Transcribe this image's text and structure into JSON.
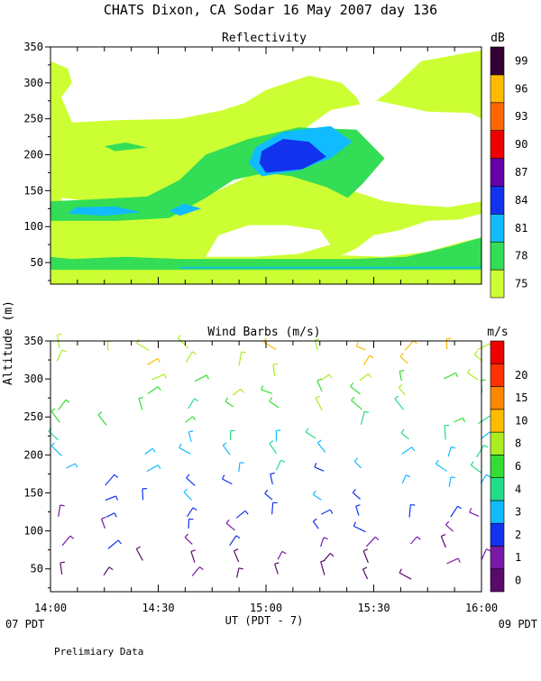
{
  "title": "CHATS Dixon, CA  Sodar  16 May 2007  day 136",
  "footnote": "Prelimiary Data",
  "y_axis_label": "Altitude (m)",
  "x_axis": {
    "label": "UT  (PDT - 7)",
    "ticks": [
      "14:00",
      "14:30",
      "15:00",
      "15:30",
      "16:00"
    ],
    "tick_values_hours": [
      14.0,
      14.5,
      15.0,
      15.5,
      16.0
    ],
    "range_hours": [
      14.0,
      16.0
    ],
    "start_local_label": "07 PDT",
    "end_local_label": "09 PDT"
  },
  "chart_data": [
    {
      "type": "heatmap",
      "title": "Reflectivity",
      "ylim": [
        20,
        350
      ],
      "y_ticks": [
        50,
        100,
        150,
        200,
        250,
        300,
        350
      ],
      "colorbar": {
        "unit": "dB",
        "levels": [
          {
            "label": "75",
            "color": "#ccff33"
          },
          {
            "label": "78",
            "color": "#33dd55"
          },
          {
            "label": "81",
            "color": "#11bbff"
          },
          {
            "label": "84",
            "color": "#1133ee"
          },
          {
            "label": "87",
            "color": "#6600aa"
          },
          {
            "label": "90",
            "color": "#ee0000"
          },
          {
            "label": "93",
            "color": "#ff6600"
          },
          {
            "label": "96",
            "color": "#ffbb00"
          },
          {
            "label": "99",
            "color": "#330033"
          }
        ]
      },
      "regions": [
        {
          "level": "75",
          "polygon": [
            [
              14.0,
              20
            ],
            [
              16.0,
              20
            ],
            [
              16.0,
              350
            ],
            [
              14.0,
              350
            ]
          ]
        },
        {
          "level": "background",
          "polygon": [
            [
              14.05,
              132
            ],
            [
              14.3,
              125
            ],
            [
              14.55,
              130
            ],
            [
              14.8,
              165
            ],
            [
              14.95,
              205
            ],
            [
              15.05,
              225
            ],
            [
              15.15,
              230
            ],
            [
              15.3,
              262
            ],
            [
              15.52,
              275
            ],
            [
              15.75,
              260
            ],
            [
              15.95,
              258
            ],
            [
              16.0,
              250
            ],
            [
              16.0,
              135
            ],
            [
              15.85,
              127
            ],
            [
              15.7,
              130
            ],
            [
              15.55,
              135
            ],
            [
              15.35,
              155
            ],
            [
              15.2,
              165
            ],
            [
              15.05,
              180
            ],
            [
              14.95,
              175
            ],
            [
              14.85,
              160
            ],
            [
              14.7,
              140
            ],
            [
              14.6,
              128
            ],
            [
              14.4,
              130
            ],
            [
              14.2,
              135
            ],
            [
              14.05,
              140
            ]
          ]
        },
        {
          "level": "background",
          "polygon": [
            [
              14.1,
              245
            ],
            [
              14.3,
              248
            ],
            [
              14.6,
              250
            ],
            [
              14.8,
              262
            ],
            [
              14.9,
              272
            ],
            [
              15.0,
              290
            ],
            [
              15.1,
              300
            ],
            [
              15.2,
              310
            ],
            [
              15.35,
              300
            ],
            [
              15.42,
              280
            ],
            [
              15.45,
              262
            ],
            [
              15.58,
              290
            ],
            [
              15.72,
              330
            ],
            [
              15.9,
              340
            ],
            [
              16.0,
              345
            ],
            [
              16.0,
              350
            ],
            [
              14.0,
              350
            ],
            [
              14.0,
              330
            ],
            [
              14.08,
              320
            ],
            [
              14.1,
              300
            ],
            [
              14.05,
              280
            ]
          ]
        },
        {
          "level": "background",
          "polygon": [
            [
              15.35,
              60
            ],
            [
              15.55,
              58
            ],
            [
              15.75,
              65
            ],
            [
              15.9,
              78
            ],
            [
              16.0,
              85
            ],
            [
              16.0,
              118
            ],
            [
              15.9,
              110
            ],
            [
              15.75,
              108
            ],
            [
              15.62,
              95
            ],
            [
              15.5,
              88
            ],
            [
              15.42,
              70
            ]
          ]
        },
        {
          "level": "background",
          "polygon": [
            [
              14.72,
              58
            ],
            [
              14.95,
              58
            ],
            [
              15.15,
              62
            ],
            [
              15.3,
              75
            ],
            [
              15.25,
              95
            ],
            [
              15.1,
              102
            ],
            [
              14.92,
              102
            ],
            [
              14.78,
              88
            ]
          ]
        },
        {
          "level": "78",
          "polygon": [
            [
              14.0,
              40
            ],
            [
              16.0,
              40
            ],
            [
              16.0,
              85
            ],
            [
              15.85,
              72
            ],
            [
              15.65,
              58
            ],
            [
              15.4,
              55
            ],
            [
              15.2,
              55
            ],
            [
              14.9,
              55
            ],
            [
              14.6,
              55
            ],
            [
              14.35,
              58
            ],
            [
              14.1,
              55
            ],
            [
              14.0,
              58
            ]
          ]
        },
        {
          "level": "78",
          "polygon": [
            [
              14.0,
              108
            ],
            [
              14.3,
              108
            ],
            [
              14.55,
              112
            ],
            [
              14.72,
              140
            ],
            [
              14.85,
              165
            ],
            [
              15.0,
              175
            ],
            [
              15.12,
              170
            ],
            [
              15.28,
              155
            ],
            [
              15.38,
              140
            ],
            [
              15.45,
              160
            ],
            [
              15.55,
              195
            ],
            [
              15.42,
              235
            ],
            [
              15.15,
              238
            ],
            [
              14.92,
              222
            ],
            [
              14.72,
              200
            ],
            [
              14.6,
              165
            ],
            [
              14.45,
              142
            ],
            [
              14.2,
              138
            ],
            [
              14.0,
              135
            ]
          ]
        },
        {
          "level": "78",
          "polygon": [
            [
              14.3,
              205
            ],
            [
              14.45,
              210
            ],
            [
              14.35,
              217
            ],
            [
              14.25,
              212
            ]
          ]
        },
        {
          "level": "81",
          "polygon": [
            [
              14.98,
              170
            ],
            [
              15.15,
              178
            ],
            [
              15.3,
              195
            ],
            [
              15.4,
              218
            ],
            [
              15.3,
              240
            ],
            [
              15.08,
              232
            ],
            [
              14.95,
              210
            ],
            [
              14.92,
              188
            ]
          ]
        },
        {
          "level": "81",
          "polygon": [
            [
              14.08,
              118
            ],
            [
              14.25,
              115
            ],
            [
              14.42,
              120
            ],
            [
              14.3,
              128
            ],
            [
              14.12,
              127
            ]
          ]
        },
        {
          "level": "81",
          "polygon": [
            [
              14.6,
              115
            ],
            [
              14.7,
              125
            ],
            [
              14.62,
              132
            ],
            [
              14.55,
              122
            ]
          ]
        },
        {
          "level": "81",
          "polygon": [
            [
              14.6,
              42
            ],
            [
              15.3,
              42
            ],
            [
              16.0,
              42
            ],
            [
              16.0,
              44
            ],
            [
              14.6,
              44
            ]
          ]
        },
        {
          "level": "84",
          "polygon": [
            [
              15.0,
              175
            ],
            [
              15.17,
              180
            ],
            [
              15.28,
              197
            ],
            [
              15.2,
              218
            ],
            [
              15.08,
              222
            ],
            [
              14.98,
              205
            ],
            [
              14.97,
              188
            ]
          ]
        }
      ]
    },
    {
      "type": "scatter",
      "subtype": "wind-barbs",
      "title": "Wind Barbs (m/s)",
      "ylim": [
        20,
        350
      ],
      "y_ticks": [
        50,
        100,
        150,
        200,
        250,
        300,
        350
      ],
      "colorbar": {
        "unit": "m/s",
        "levels": [
          {
            "label": "0",
            "color": "#5a0a6a"
          },
          {
            "label": "1",
            "color": "#7a1aa8"
          },
          {
            "label": "2",
            "color": "#1133ee"
          },
          {
            "label": "3",
            "color": "#11bbff"
          },
          {
            "label": "4",
            "color": "#22dd88"
          },
          {
            "label": "6",
            "color": "#33dd33"
          },
          {
            "label": "8",
            "color": "#aaee22"
          },
          {
            "label": "10",
            "color": "#ffbb00"
          },
          {
            "label": "15",
            "color": "#ff8800"
          },
          {
            "label": "20",
            "color": "#ff3300"
          },
          {
            "label": "",
            "color": "#ee0000"
          }
        ]
      },
      "columns_hours": [
        14.05,
        14.25,
        14.45,
        14.65,
        14.85,
        15.05,
        15.25,
        15.45,
        15.65,
        15.85,
        16.0
      ],
      "levels_m": [
        40,
        60,
        80,
        100,
        120,
        140,
        160,
        180,
        200,
        220,
        240,
        260,
        280,
        300,
        320,
        340
      ]
    }
  ]
}
